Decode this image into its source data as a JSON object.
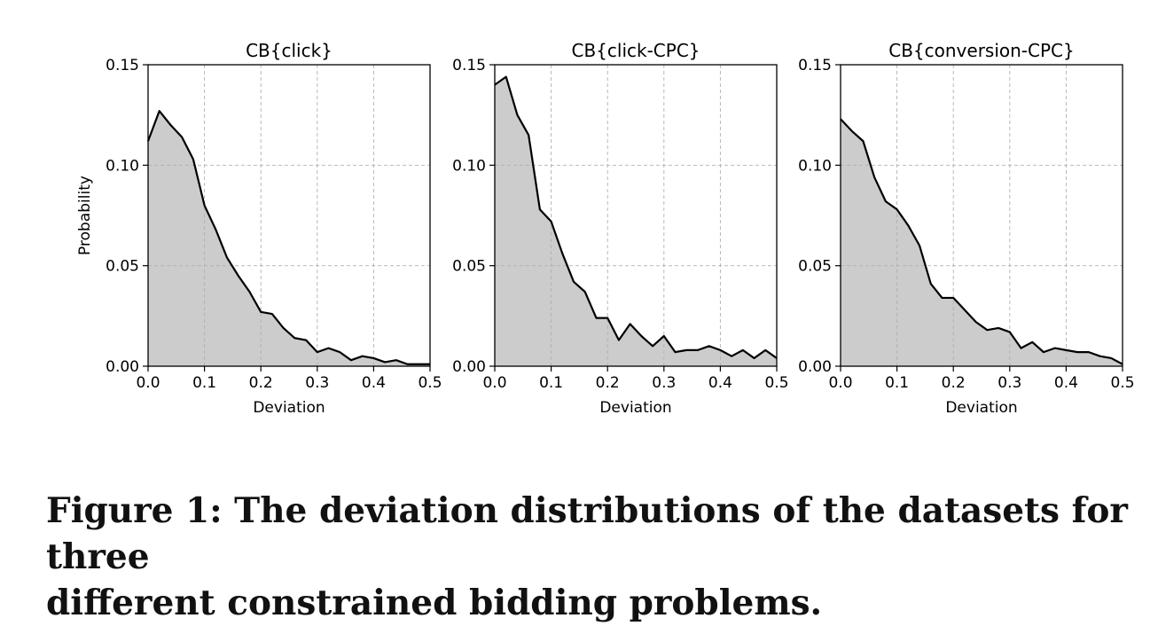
{
  "caption": {
    "line1": "Figure 1: The deviation distributions of the datasets for three",
    "line2": "different constrained bidding problems."
  },
  "colors": {
    "fill": "#cccccc",
    "line": "#000000",
    "grid": "#b0b0b0"
  },
  "chart_data": [
    {
      "type": "area",
      "title": "CB{click}",
      "xlabel": "Deviation",
      "ylabel": "Probability",
      "xlim": [
        0.0,
        0.5
      ],
      "ylim": [
        0.0,
        0.15
      ],
      "xticks": [
        "0.0",
        "0.1",
        "0.2",
        "0.3",
        "0.4",
        "0.5"
      ],
      "yticks": [
        "0.00",
        "0.05",
        "0.10",
        "0.15"
      ],
      "grid": true,
      "x": [
        0.0,
        0.02,
        0.04,
        0.06,
        0.08,
        0.1,
        0.12,
        0.14,
        0.16,
        0.18,
        0.2,
        0.22,
        0.24,
        0.26,
        0.28,
        0.3,
        0.32,
        0.34,
        0.36,
        0.38,
        0.4,
        0.42,
        0.44,
        0.46,
        0.48,
        0.5
      ],
      "y": [
        0.112,
        0.127,
        0.12,
        0.114,
        0.103,
        0.08,
        0.068,
        0.054,
        0.045,
        0.037,
        0.027,
        0.026,
        0.019,
        0.014,
        0.013,
        0.007,
        0.009,
        0.007,
        0.003,
        0.005,
        0.004,
        0.002,
        0.003,
        0.001,
        0.001,
        0.001
      ]
    },
    {
      "type": "area",
      "title": "CB{click-CPC}",
      "xlabel": "Deviation",
      "ylabel": "",
      "xlim": [
        0.0,
        0.5
      ],
      "ylim": [
        0.0,
        0.15
      ],
      "xticks": [
        "0.0",
        "0.1",
        "0.2",
        "0.3",
        "0.4",
        "0.5"
      ],
      "yticks": [
        "0.00",
        "0.05",
        "0.10",
        "0.15"
      ],
      "grid": true,
      "x": [
        0.0,
        0.02,
        0.04,
        0.06,
        0.08,
        0.1,
        0.12,
        0.14,
        0.16,
        0.18,
        0.2,
        0.22,
        0.24,
        0.26,
        0.28,
        0.3,
        0.32,
        0.34,
        0.36,
        0.38,
        0.4,
        0.42,
        0.44,
        0.46,
        0.48,
        0.5
      ],
      "y": [
        0.14,
        0.144,
        0.125,
        0.115,
        0.078,
        0.072,
        0.056,
        0.042,
        0.037,
        0.024,
        0.024,
        0.013,
        0.021,
        0.015,
        0.01,
        0.015,
        0.007,
        0.008,
        0.008,
        0.01,
        0.008,
        0.005,
        0.008,
        0.004,
        0.008,
        0.004
      ]
    },
    {
      "type": "area",
      "title": "CB{conversion-CPC}",
      "xlabel": "Deviation",
      "ylabel": "",
      "xlim": [
        0.0,
        0.5
      ],
      "ylim": [
        0.0,
        0.15
      ],
      "xticks": [
        "0.0",
        "0.1",
        "0.2",
        "0.3",
        "0.4",
        "0.5"
      ],
      "yticks": [
        "0.00",
        "0.05",
        "0.10",
        "0.15"
      ],
      "grid": true,
      "x": [
        0.0,
        0.02,
        0.04,
        0.06,
        0.08,
        0.1,
        0.12,
        0.14,
        0.16,
        0.18,
        0.2,
        0.22,
        0.24,
        0.26,
        0.28,
        0.3,
        0.32,
        0.34,
        0.36,
        0.38,
        0.4,
        0.42,
        0.44,
        0.46,
        0.48,
        0.5
      ],
      "y": [
        0.123,
        0.117,
        0.112,
        0.094,
        0.082,
        0.078,
        0.07,
        0.06,
        0.041,
        0.034,
        0.034,
        0.028,
        0.022,
        0.018,
        0.019,
        0.017,
        0.009,
        0.012,
        0.007,
        0.009,
        0.008,
        0.007,
        0.007,
        0.005,
        0.004,
        0.001
      ]
    }
  ]
}
